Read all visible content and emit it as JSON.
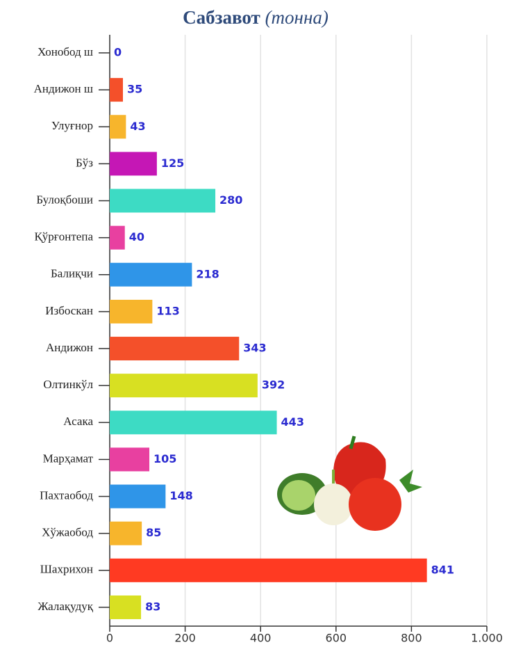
{
  "chart_data": {
    "type": "bar",
    "orientation": "horizontal",
    "title": "Сабзавот",
    "subtitle": "(тонна)",
    "categories": [
      "Хонобод ш",
      "Андижон ш",
      "Улуғнор",
      "Бўз",
      "Булоқбоши",
      "Қўрғонтепа",
      "Балиқчи",
      "Избоскан",
      "Андижон",
      "Олтинкўл",
      "Асака",
      "Марҳамат",
      "Пахтаобод",
      "Хўжаобод",
      "Шахрихон",
      "Жалақудуқ"
    ],
    "values": [
      0,
      35,
      43,
      125,
      280,
      40,
      218,
      113,
      343,
      392,
      443,
      105,
      148,
      85,
      841,
      83
    ],
    "colors": [
      "#f04e23",
      "#f4502a",
      "#f7b52c",
      "#c517b5",
      "#3ddbc4",
      "#e840a0",
      "#2f95e8",
      "#f7b52c",
      "#f4502a",
      "#d8e022",
      "#3ddbc4",
      "#e840a0",
      "#2f95e8",
      "#f7b52c",
      "#ff3a22",
      "#d8e022"
    ],
    "xlim": [
      0,
      1000
    ],
    "xticks": [
      0,
      200,
      400,
      600,
      800,
      {
        "value": 1000,
        "label": "1.000"
      }
    ],
    "grid": true
  }
}
